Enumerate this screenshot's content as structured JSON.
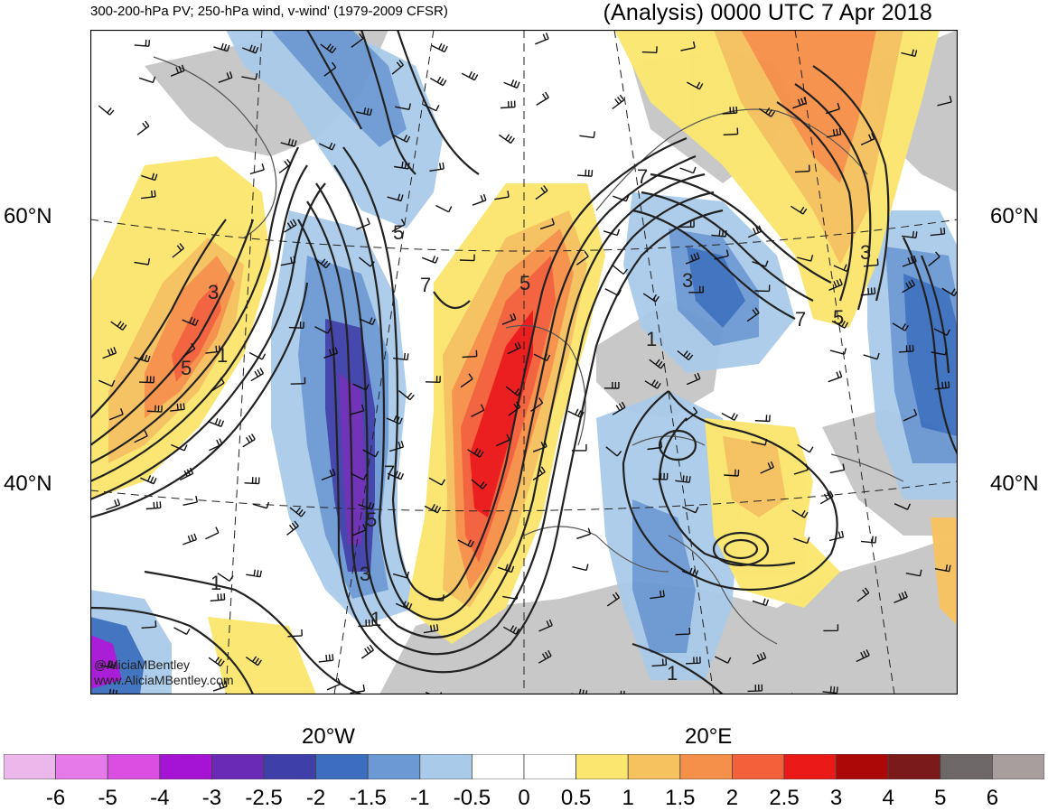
{
  "header": {
    "product": "300-200-hPa PV; 250-hPa wind, v-wind' (1979-2009 CFSR)",
    "valid_time": "(Analysis) 0000 UTC 7 Apr 2018"
  },
  "latitude_labels": [
    {
      "id": "60n",
      "text": "60°N"
    },
    {
      "id": "40n",
      "text": "40°N"
    }
  ],
  "longitude_labels": [
    {
      "id": "20w",
      "text": "20°W"
    },
    {
      "id": "20e",
      "text": "20°E"
    }
  ],
  "credits": {
    "handle": "@AliciaMBentley",
    "website": "www.AliciaMBentley.com"
  },
  "contour_labels": [
    "1",
    "3",
    "5",
    "7"
  ],
  "colorbar": {
    "ticks": [
      "-6",
      "-5",
      "-4",
      "-3",
      "-2.5",
      "-2",
      "-1.5",
      "-1",
      "-0.5",
      "0",
      "0.5",
      "1",
      "1.5",
      "2",
      "2.5",
      "3",
      "4",
      "5",
      "6"
    ],
    "colors": [
      "#ecb8ec",
      "#e57ae8",
      "#db4ee2",
      "#a513d4",
      "#6a2ab6",
      "#3e3fa9",
      "#3b6ebe",
      "#6c98d3",
      "#a9cbe9",
      "#ffffff",
      "#ffffff",
      "#fbe66f",
      "#f6c25f",
      "#f5904a",
      "#f3613a",
      "#eb1818",
      "#ad0808",
      "#7a1a1a",
      "#6e6767",
      "#a99e9e"
    ]
  },
  "palette": {
    "land_mask": "#c8c8c8",
    "contour": "#222222",
    "coastline": "#555555"
  }
}
